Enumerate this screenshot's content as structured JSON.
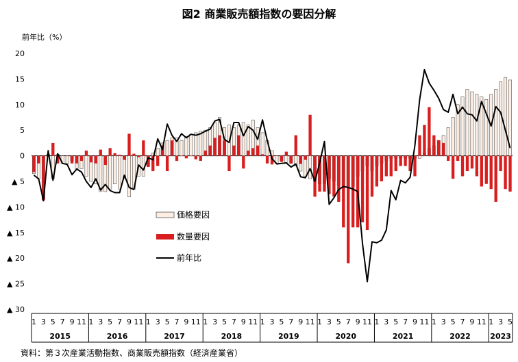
{
  "chart_data": {
    "type": "bar",
    "title": "図2 商業販売額指数の要因分解",
    "ylabel": "前年比（%）",
    "source": "資料：第３次産業活動指数、商業販売額指数（経済産業省）",
    "ylim": [
      -30,
      20
    ],
    "yticks": [
      {
        "value": 20,
        "label": "20"
      },
      {
        "value": 15,
        "label": "15"
      },
      {
        "value": 10,
        "label": "10"
      },
      {
        "value": 5,
        "label": "5"
      },
      {
        "value": 0,
        "label": "0"
      },
      {
        "value": -5,
        "label": "▲ 5"
      },
      {
        "value": -10,
        "label": "▲ 10"
      },
      {
        "value": -15,
        "label": "▲ 15"
      },
      {
        "value": -20,
        "label": "▲ 20"
      },
      {
        "value": -25,
        "label": "▲ 25"
      },
      {
        "value": -30,
        "label": "▲ 30"
      }
    ],
    "year_labels": [
      "2015",
      "2016",
      "2017",
      "2018",
      "2019",
      "2020",
      "2021",
      "2022",
      "2023"
    ],
    "month_tick_labels": [
      "1",
      "3",
      "5",
      "7",
      "9",
      "11"
    ],
    "n_months": 101,
    "series": [
      {
        "name": "価格要因",
        "type": "bar",
        "color": "#fdeee3",
        "values": [
          -3.5,
          -4.5,
          -8.5,
          0.3,
          -4.5,
          0.3,
          -1.5,
          -1.5,
          -1.0,
          -2.5,
          -2.5,
          -4,
          -5,
          -5.5,
          -7,
          -7,
          -6.5,
          -5.5,
          -6.5,
          -4.5,
          -8,
          -6.5,
          -4,
          -4,
          -2,
          0.5,
          1.5,
          2.5,
          3,
          3.5,
          3.5,
          3,
          3.8,
          4.2,
          4.5,
          4.8,
          5,
          5.5,
          6.5,
          7.5,
          5.5,
          6,
          5.5,
          6,
          6.5,
          6,
          7,
          5.5,
          4.5,
          3,
          1,
          -1.5,
          -1,
          -1.3,
          -1.5,
          -2,
          -3,
          -4,
          -4.5,
          -5,
          -5.5,
          -5.5,
          -4.5,
          -5,
          -5.8,
          -6,
          -6,
          -6,
          -4,
          -3,
          -2,
          -3,
          -2,
          -1.5,
          -1,
          -0.5,
          -0.5,
          -0.5,
          -0.5,
          -0.5,
          -0.5,
          -0.5,
          0.5,
          1.5,
          2,
          3,
          4,
          5.5,
          7.5,
          10,
          11.5,
          13,
          12.5,
          12,
          11.5,
          11,
          12,
          13,
          14.5,
          15.3,
          14.8
        ]
      },
      {
        "name": "数量要因",
        "type": "bar",
        "color": "#d81e1e",
        "values": [
          -3.2,
          -1.5,
          -8.7,
          0,
          2.5,
          -1.5,
          0,
          0,
          -1.5,
          -1.5,
          -1,
          1,
          -1.3,
          -1.5,
          1.2,
          -1.8,
          1.5,
          0.5,
          0.2,
          -0.8,
          4.3,
          0.4,
          -0.3,
          3,
          -2.2,
          -3,
          -2,
          2,
          -3,
          3,
          -1,
          0,
          -0.5,
          0,
          -0.7,
          -1,
          1,
          2,
          3.5,
          4,
          3,
          -3,
          2,
          4,
          -2.5,
          1,
          1.5,
          2,
          0.3,
          -1.5,
          -1.7,
          0,
          -1.2,
          0.8,
          -1.5,
          4,
          -1.6,
          -0.8,
          8,
          -8,
          -7,
          -7,
          -7.5,
          -8,
          -9,
          -14,
          -21,
          -14,
          -14,
          -13,
          -14.5,
          -8,
          -6,
          -5,
          -4,
          -4,
          -3,
          -2,
          -2,
          -3,
          -4,
          4,
          6,
          9.5,
          4,
          3,
          2.5,
          -1,
          -4.5,
          -1,
          -4,
          -3,
          -2.5,
          -4,
          -6,
          -5.5,
          -6.5,
          -9,
          -3,
          -6.5,
          -7
        ]
      },
      {
        "name": "前年比",
        "type": "line",
        "color": "#000000",
        "values": [
          -3.8,
          -4.5,
          -8.8,
          1.0,
          -4.8,
          0.4,
          -1.5,
          -1.7,
          -3.7,
          -2.6,
          -3.2,
          -5.0,
          -6.2,
          -4.5,
          -6.7,
          -5.6,
          -6.8,
          -7.2,
          -7.2,
          -3.8,
          -6.2,
          -6.6,
          -1.8,
          -2.8,
          -0.4,
          -0.8,
          3.3,
          1.2,
          6.2,
          4.0,
          2.8,
          4.3,
          3.5,
          4.2,
          4.0,
          4.3,
          4.8,
          5.2,
          6.8,
          7.1,
          3.2,
          2.6,
          6.5,
          6.5,
          3.9,
          5.7,
          5.0,
          3.2,
          7.0,
          3.0,
          -0.6,
          -1.6,
          -1.5,
          -1.4,
          -2.2,
          -1.6,
          -4.1,
          -4.3,
          -2.5,
          -5.0,
          -1.4,
          2.8,
          -9.5,
          -8.2,
          -6.6,
          -6.0,
          -6.2,
          -6.5,
          -7.0,
          -17.2,
          -24.6,
          -16.8,
          -17.0,
          -16.5,
          -14.5,
          -6.8,
          -8.6,
          -4.8,
          -5.3,
          -4.2,
          2.0,
          11.0,
          16.8,
          14.2,
          12.8,
          11.2,
          9.0,
          8.5,
          12.0,
          8.2,
          9.5,
          8.2,
          8.0,
          6.8,
          10.6,
          8.2,
          5.8,
          9.6,
          8.5,
          5.0,
          1.5
        ]
      }
    ],
    "legend": [
      {
        "label": "価格要因",
        "swatch": "bar",
        "color": "#fdeee3"
      },
      {
        "label": "数量要因",
        "swatch": "bar",
        "color": "#d81e1e"
      },
      {
        "label": "前年比",
        "swatch": "line",
        "color": "#000000"
      }
    ]
  }
}
